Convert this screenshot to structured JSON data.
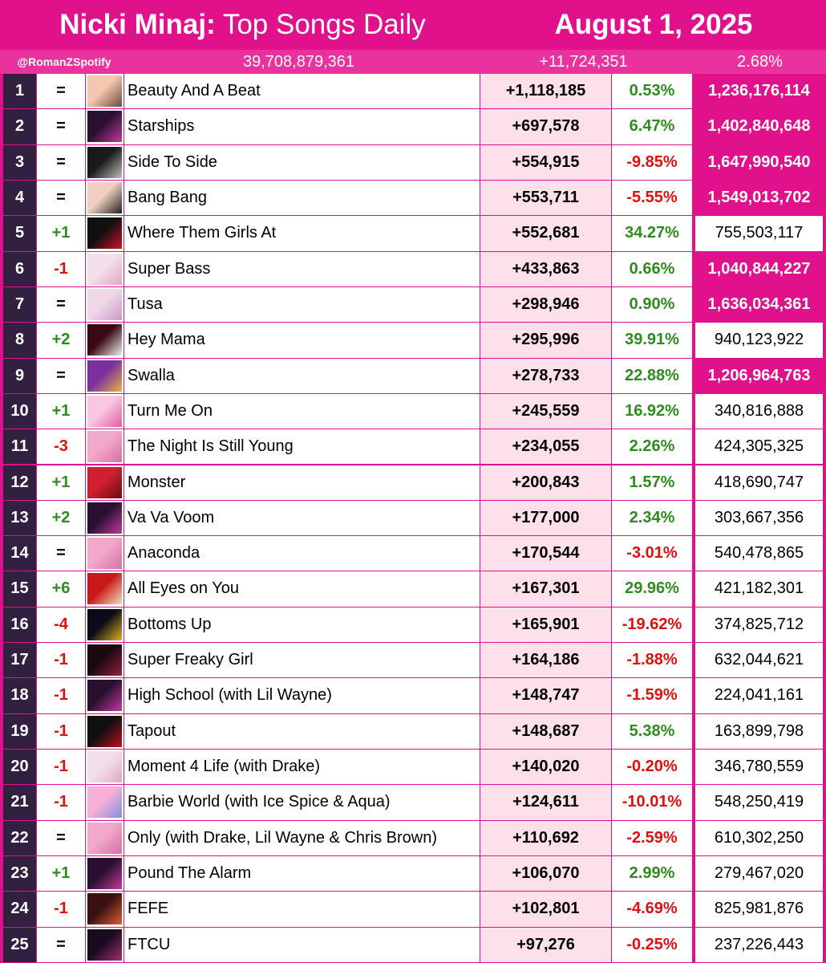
{
  "header": {
    "title_artist": "Nicki Minaj:",
    "title_rest": " Top Songs Daily",
    "date": "August 1, 2025"
  },
  "subheader": {
    "handle": "@RomanZSpotify",
    "total_streams": "39,708,879,361",
    "daily_total": "+11,724,351",
    "daily_change_pct": "2.68%"
  },
  "colors": {
    "brand_pink": "#e0118a",
    "rank_bg": "#322040",
    "daily_bg": "#fde0ea",
    "positive": "#2e8b1e",
    "negative": "#e01010"
  },
  "chart_data": {
    "type": "table",
    "columns": [
      "rank",
      "change",
      "cover",
      "title",
      "daily_streams",
      "daily_change_pct",
      "total_streams"
    ],
    "rows": [
      {
        "rank": "1",
        "change": "=",
        "title": "Beauty And A Beat",
        "daily": "+1,118,185",
        "pct": "0.53%",
        "total": "1,236,176,114",
        "billion": true,
        "art": [
          "#f4c8b0",
          "#6b4a3a"
        ]
      },
      {
        "rank": "2",
        "change": "=",
        "title": "Starships",
        "daily": "+697,578",
        "pct": "6.47%",
        "total": "1,402,840,648",
        "billion": true,
        "art": [
          "#2a1030",
          "#c43aa0"
        ]
      },
      {
        "rank": "3",
        "change": "=",
        "title": "Side To Side",
        "daily": "+554,915",
        "pct": "-9.85%",
        "total": "1,647,990,540",
        "billion": true,
        "art": [
          "#1a1a1a",
          "#bdbdbd"
        ]
      },
      {
        "rank": "4",
        "change": "=",
        "title": "Bang Bang",
        "daily": "+553,711",
        "pct": "-5.55%",
        "total": "1,549,013,702",
        "billion": true,
        "art": [
          "#f0d0c0",
          "#202020"
        ]
      },
      {
        "rank": "5",
        "change": "+1",
        "title": "Where Them Girls At",
        "daily": "+552,681",
        "pct": "34.27%",
        "total": "755,503,117",
        "billion": false,
        "art": [
          "#101010",
          "#d0102a"
        ]
      },
      {
        "rank": "6",
        "change": "-1",
        "title": "Super Bass",
        "daily": "+433,863",
        "pct": "0.66%",
        "total": "1,040,844,227",
        "billion": true,
        "art": [
          "#f4e0ea",
          "#e0a8c0"
        ]
      },
      {
        "rank": "7",
        "change": "=",
        "title": "Tusa",
        "daily": "+298,946",
        "pct": "0.90%",
        "total": "1,636,034,361",
        "billion": true,
        "art": [
          "#f0d8e8",
          "#c898c8"
        ]
      },
      {
        "rank": "8",
        "change": "+2",
        "title": "Hey Mama",
        "daily": "+295,996",
        "pct": "39.91%",
        "total": "940,123,922",
        "billion": false,
        "art": [
          "#3a0a14",
          "#f0f0f0"
        ]
      },
      {
        "rank": "9",
        "change": "=",
        "title": "Swalla",
        "daily": "+278,733",
        "pct": "22.88%",
        "total": "1,206,964,763",
        "billion": true,
        "art": [
          "#7a30a0",
          "#f0b040"
        ]
      },
      {
        "rank": "10",
        "change": "+1",
        "title": "Turn Me On",
        "daily": "+245,559",
        "pct": "16.92%",
        "total": "340,816,888",
        "billion": false,
        "art": [
          "#f8c8e0",
          "#e060a0"
        ]
      },
      {
        "rank": "11",
        "change": "-3",
        "title": "The Night Is Still Young",
        "daily": "+234,055",
        "pct": "2.26%",
        "total": "424,305,325",
        "billion": false,
        "art": [
          "#f2a8c8",
          "#d870a8"
        ]
      },
      {
        "rank": "12",
        "change": "+1",
        "title": "Monster",
        "daily": "+200,843",
        "pct": "1.57%",
        "total": "418,690,747",
        "billion": false,
        "art": [
          "#d02030",
          "#6a1010"
        ]
      },
      {
        "rank": "13",
        "change": "+2",
        "title": "Va Va Voom",
        "daily": "+177,000",
        "pct": "2.34%",
        "total": "303,667,356",
        "billion": false,
        "art": [
          "#2a1030",
          "#c43aa0"
        ]
      },
      {
        "rank": "14",
        "change": "=",
        "title": "Anaconda",
        "daily": "+170,544",
        "pct": "-3.01%",
        "total": "540,478,865",
        "billion": false,
        "art": [
          "#f2a8c8",
          "#d870a8"
        ]
      },
      {
        "rank": "15",
        "change": "+6",
        "title": "All Eyes on You",
        "daily": "+167,301",
        "pct": "29.96%",
        "total": "421,182,301",
        "billion": false,
        "art": [
          "#c81818",
          "#f0e0c0"
        ]
      },
      {
        "rank": "16",
        "change": "-4",
        "title": "Bottoms Up",
        "daily": "+165,901",
        "pct": "-19.62%",
        "total": "374,825,712",
        "billion": false,
        "art": [
          "#0a0a1a",
          "#e0b020"
        ]
      },
      {
        "rank": "17",
        "change": "-1",
        "title": "Super Freaky Girl",
        "daily": "+164,186",
        "pct": "-1.88%",
        "total": "632,044,621",
        "billion": false,
        "art": [
          "#1a0a10",
          "#9a2040"
        ]
      },
      {
        "rank": "18",
        "change": "-1",
        "title": "High School (with Lil Wayne)",
        "daily": "+148,747",
        "pct": "-1.59%",
        "total": "224,041,161",
        "billion": false,
        "art": [
          "#2a1030",
          "#c43aa0"
        ]
      },
      {
        "rank": "19",
        "change": "-1",
        "title": "Tapout",
        "daily": "+148,687",
        "pct": "5.38%",
        "total": "163,899,798",
        "billion": false,
        "art": [
          "#101010",
          "#c01020"
        ]
      },
      {
        "rank": "20",
        "change": "-1",
        "title": "Moment 4 Life (with Drake)",
        "daily": "+140,020",
        "pct": "-0.20%",
        "total": "346,780,559",
        "billion": false,
        "art": [
          "#f4e0ea",
          "#e0a8c0"
        ]
      },
      {
        "rank": "21",
        "change": "-1",
        "title": "Barbie World (with Ice Spice & Aqua)",
        "daily": "+124,611",
        "pct": "-10.01%",
        "total": "548,250,419",
        "billion": false,
        "art": [
          "#f8b0d8",
          "#8090e0"
        ]
      },
      {
        "rank": "22",
        "change": "=",
        "title": "Only (with Drake, Lil Wayne & Chris Brown)",
        "daily": "+110,692",
        "pct": "-2.59%",
        "total": "610,302,250",
        "billion": false,
        "art": [
          "#f2a8c8",
          "#d870a8"
        ]
      },
      {
        "rank": "23",
        "change": "+1",
        "title": "Pound The Alarm",
        "daily": "+106,070",
        "pct": "2.99%",
        "total": "279,467,020",
        "billion": false,
        "art": [
          "#2a1030",
          "#c43aa0"
        ]
      },
      {
        "rank": "24",
        "change": "-1",
        "title": "FEFE",
        "daily": "+102,801",
        "pct": "-4.69%",
        "total": "825,981,876",
        "billion": false,
        "art": [
          "#3a1010",
          "#e06030"
        ]
      },
      {
        "rank": "25",
        "change": "=",
        "title": "FTCU",
        "daily": "+97,276",
        "pct": "-0.25%",
        "total": "237,226,443",
        "billion": false,
        "art": [
          "#1a0a20",
          "#a03070"
        ]
      }
    ]
  }
}
